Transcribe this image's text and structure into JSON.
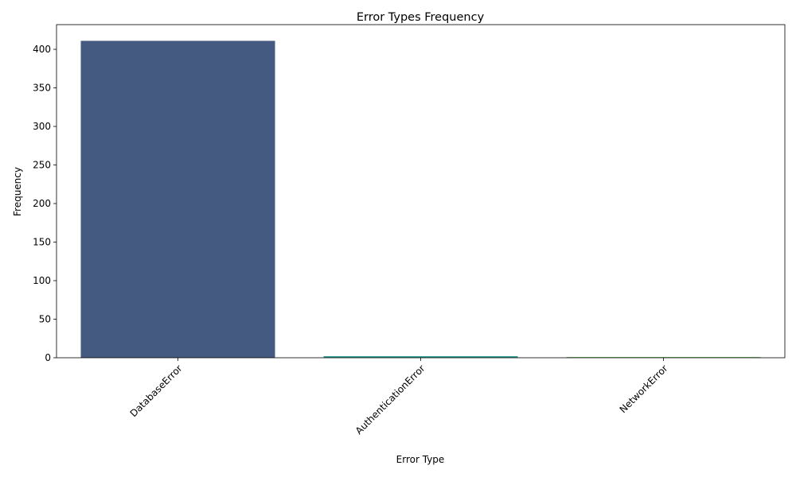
{
  "chart_data": {
    "type": "bar",
    "title": "Error Types Frequency",
    "xlabel": "Error Type",
    "ylabel": "Frequency",
    "categories": [
      "DatabaseError",
      "AuthenticationError",
      "NetworkError"
    ],
    "values": [
      411,
      2,
      1
    ],
    "colors": [
      "#455a80",
      "#2a9d8f",
      "#7ac66a"
    ],
    "ylim": [
      0,
      432
    ],
    "yticks": [
      0,
      50,
      100,
      150,
      200,
      250,
      300,
      350,
      400
    ],
    "xtick_rotation_deg": 45,
    "grid": false,
    "legend": "none"
  }
}
